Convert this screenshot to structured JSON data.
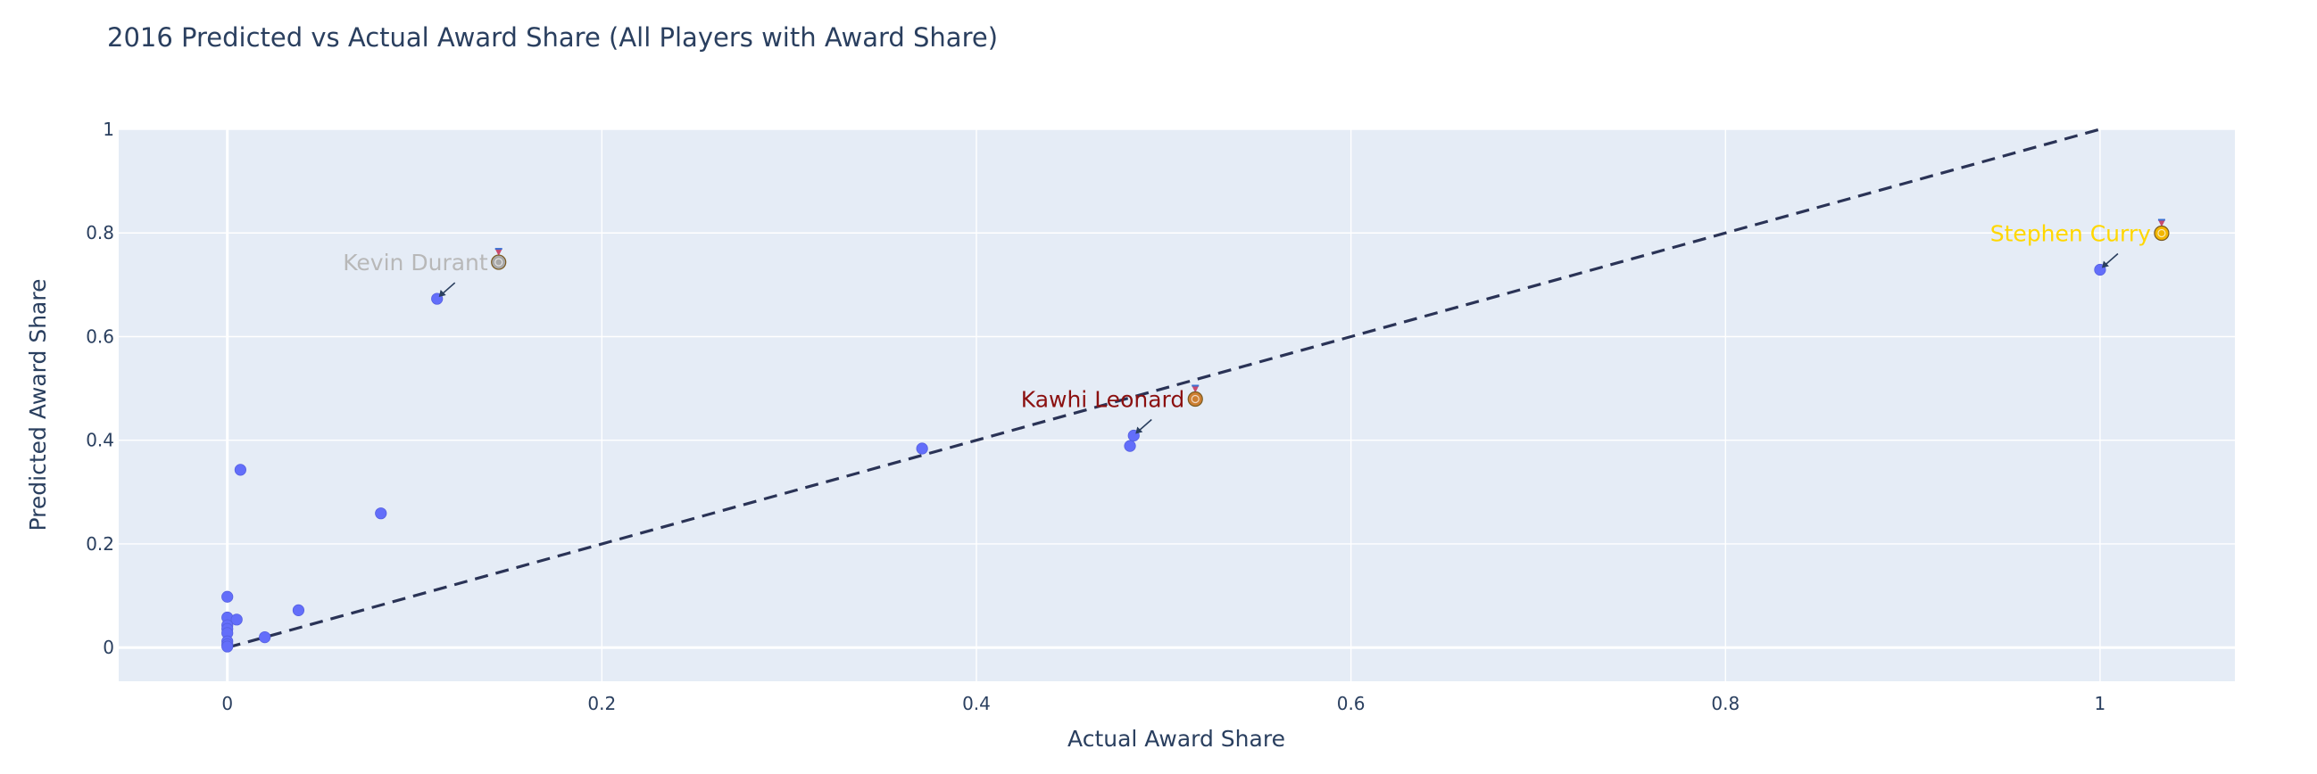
{
  "chart_data": {
    "type": "scatter",
    "title": "2016 Predicted vs Actual Award Share (All Players with Award Share)",
    "xlabel": "Actual Award Share",
    "ylabel": "Predicted Award Share",
    "xlim": [
      -0.058,
      1.072
    ],
    "ylim": [
      -0.065,
      1.0
    ],
    "xticks": [
      0,
      0.2,
      0.4,
      0.6,
      0.8,
      1
    ],
    "xtick_labels": [
      "0",
      "0.2",
      "0.4",
      "0.6",
      "0.8",
      "1"
    ],
    "yticks": [
      0,
      0.2,
      0.4,
      0.6,
      0.8,
      1
    ],
    "ytick_labels": [
      "0",
      "0.2",
      "0.4",
      "0.6",
      "0.8",
      "1"
    ],
    "grid": true,
    "point_color": "#636efa",
    "reference_line": {
      "style": "dashed",
      "color": "#2a3356",
      "from": [
        0,
        0
      ],
      "to": [
        1,
        1
      ]
    },
    "points": [
      {
        "x": 1.0,
        "y": 0.729
      },
      {
        "x": 0.112,
        "y": 0.673
      },
      {
        "x": 0.484,
        "y": 0.409
      },
      {
        "x": 0.482,
        "y": 0.389
      },
      {
        "x": 0.371,
        "y": 0.384
      },
      {
        "x": 0.007,
        "y": 0.343
      },
      {
        "x": 0.082,
        "y": 0.259
      },
      {
        "x": 0.038,
        "y": 0.072
      },
      {
        "x": 0.0,
        "y": 0.098
      },
      {
        "x": 0.0,
        "y": 0.058
      },
      {
        "x": 0.005,
        "y": 0.054
      },
      {
        "x": 0.0,
        "y": 0.043
      },
      {
        "x": 0.0,
        "y": 0.036
      },
      {
        "x": 0.0,
        "y": 0.028
      },
      {
        "x": 0.02,
        "y": 0.02
      },
      {
        "x": 0.0,
        "y": 0.012
      },
      {
        "x": 0.0,
        "y": 0.006
      },
      {
        "x": 0.0,
        "y": 0.002
      }
    ],
    "annotations": [
      {
        "text": "Stephen Curry",
        "x": 1.0,
        "y": 0.729,
        "color": "#ffd700",
        "medal": "gold-medal-icon",
        "medal_color": "#f2b600"
      },
      {
        "text": "Kevin Durant",
        "x": 0.112,
        "y": 0.673,
        "color": "#b8b8b8",
        "medal": "silver-medal-icon",
        "medal_color": "#a8a8a8"
      },
      {
        "text": "Kawhi Leonard",
        "x": 0.484,
        "y": 0.409,
        "color": "#8b1010",
        "medal": "bronze-medal-icon",
        "medal_color": "#cd7f32"
      }
    ],
    "colors": {
      "plot_bg": "#e5ecf6",
      "grid": "#ffffff",
      "text": "#2a3f5f",
      "arrow": "#2a3f5f"
    }
  }
}
